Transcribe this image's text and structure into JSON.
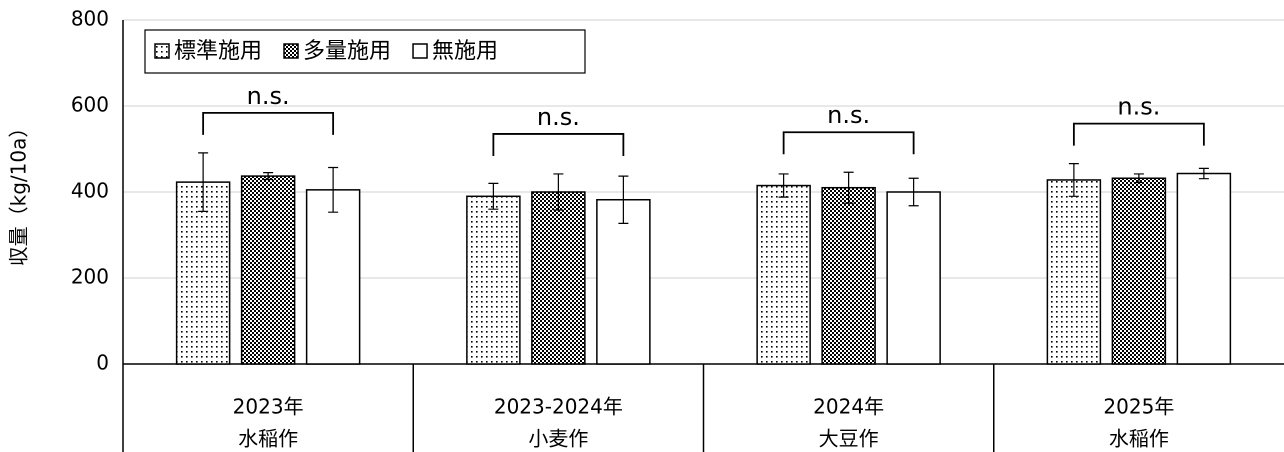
{
  "chart_data": {
    "type": "bar",
    "ylabel": "収量（kg/10a）",
    "categories": [
      [
        "2023年",
        "水稲作"
      ],
      [
        "2023-2024年",
        "小麦作"
      ],
      [
        "2024年",
        "大豆作"
      ],
      [
        "2025年",
        "水稲作"
      ]
    ],
    "series": [
      {
        "name": "標準施用",
        "color": "#000000",
        "pattern": "dots",
        "values": [
          423,
          390,
          415,
          428
        ],
        "errors": [
          68,
          30,
          27,
          38
        ]
      },
      {
        "name": "多量施用",
        "color": "#000000",
        "pattern": "checker",
        "values": [
          437,
          400,
          410,
          432
        ],
        "errors": [
          8,
          42,
          36,
          10
        ]
      },
      {
        "name": "無施用",
        "color": "#000000",
        "pattern": "none",
        "values": [
          405,
          382,
          400,
          443
        ],
        "errors": [
          52,
          55,
          32,
          12
        ]
      }
    ],
    "annotations": [
      "n.s.",
      "n.s.",
      "n.s.",
      "n.s."
    ],
    "ylim": [
      0,
      800
    ],
    "yticks": [
      0,
      200,
      400,
      600,
      800
    ],
    "grid": true,
    "legend": "top-left"
  }
}
